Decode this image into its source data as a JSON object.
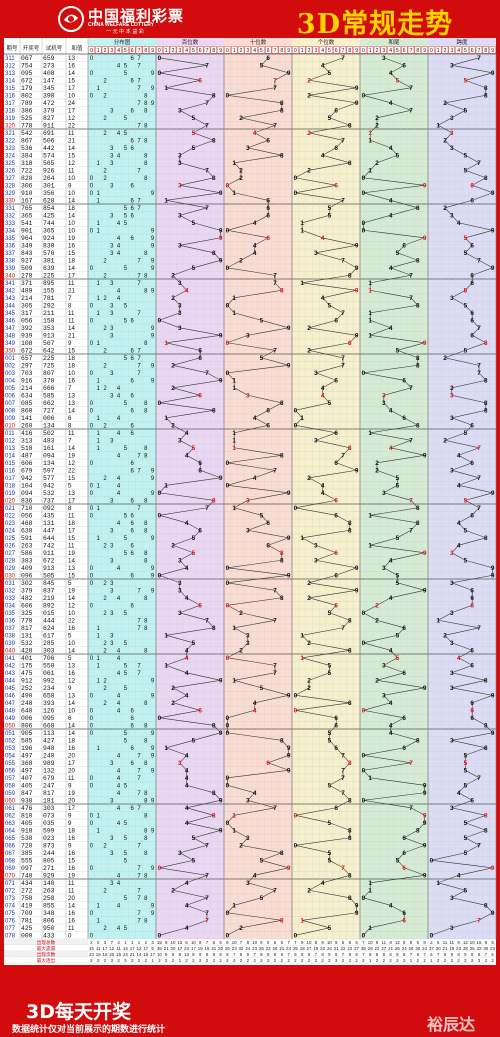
{
  "header": {
    "logo_cn": "中国福利彩票",
    "logo_en": "CHINA WELFARE LOTTERY",
    "logo_slogan": "一 元 中 本 益 彩",
    "title": "3D常规走势"
  },
  "footer": {
    "big": "3D每天开奖",
    "small": "数据统计仅对当前展示的期数进行统计",
    "brand": "裕辰达"
  },
  "colors": {
    "frame": "#d20c0c",
    "title": "#ffd200",
    "lines": "#333333",
    "missing_red": "#e11111",
    "missing_blue": "#2222cc"
  },
  "chart_data": {
    "type": "table",
    "columns": [
      "期号",
      "开奖号",
      "试机号",
      "和值"
    ],
    "sections": [
      "分布图",
      "百位数",
      "十位数",
      "个位数",
      "和尾",
      "跨度"
    ],
    "digits": [
      "0",
      "1",
      "2",
      "3",
      "4",
      "5",
      "6",
      "7",
      "8",
      "9"
    ],
    "stat_labels": [
      "出现总数",
      "最大遗漏",
      "出现次数",
      "最大连出"
    ],
    "rows": [
      [
        "311",
        "067",
        "659",
        "13"
      ],
      [
        "312",
        "754",
        "273",
        "16"
      ],
      [
        "313",
        "095",
        "408",
        "14"
      ],
      [
        "314",
        "672",
        "147",
        "15"
      ],
      [
        "315",
        "179",
        "345",
        "17"
      ],
      [
        "316",
        "802",
        "398",
        "10"
      ],
      [
        "317",
        "789",
        "472",
        "24"
      ],
      [
        "318",
        "386",
        "379",
        "17"
      ],
      [
        "319",
        "525",
        "827",
        "12"
      ],
      [
        "320",
        "778",
        "911",
        "22"
      ],
      [
        "321",
        "542",
        "691",
        "11"
      ],
      [
        "322",
        "867",
        "506",
        "21"
      ],
      [
        "323",
        "536",
        "442",
        "14"
      ],
      [
        "324",
        "384",
        "574",
        "15"
      ],
      [
        "325",
        "318",
        "565",
        "12"
      ],
      [
        "326",
        "722",
        "926",
        "11"
      ],
      [
        "327",
        "820",
        "264",
        "10"
      ],
      [
        "328",
        "306",
        "301",
        "9"
      ],
      [
        "329",
        "910",
        "356",
        "10"
      ],
      [
        "330",
        "167",
        "628",
        "14"
      ],
      [
        "331",
        "765",
        "854",
        "18"
      ],
      [
        "332",
        "365",
        "425",
        "14"
      ],
      [
        "333",
        "541",
        "744",
        "10"
      ],
      [
        "334",
        "901",
        "365",
        "10"
      ],
      [
        "335",
        "964",
        "924",
        "19"
      ],
      [
        "336",
        "349",
        "830",
        "16"
      ],
      [
        "337",
        "843",
        "570",
        "15"
      ],
      [
        "338",
        "927",
        "381",
        "18"
      ],
      [
        "339",
        "509",
        "639",
        "14"
      ],
      [
        "340",
        "278",
        "225",
        "17"
      ],
      [
        "341",
        "371",
        "895",
        "11"
      ],
      [
        "342",
        "489",
        "155",
        "21"
      ],
      [
        "343",
        "214",
        "781",
        "7"
      ],
      [
        "344",
        "305",
        "292",
        "8"
      ],
      [
        "345",
        "317",
        "211",
        "11"
      ],
      [
        "346",
        "056",
        "158",
        "11"
      ],
      [
        "347",
        "392",
        "353",
        "14"
      ],
      [
        "348",
        "939",
        "913",
        "21"
      ],
      [
        "349",
        "108",
        "567",
        "9"
      ],
      [
        "350",
        "672",
        "642",
        "15"
      ],
      [
        "001",
        "657",
        "225",
        "18"
      ],
      [
        "002",
        "297",
        "725",
        "18"
      ],
      [
        "003",
        "703",
        "807",
        "10"
      ],
      [
        "004",
        "916",
        "370",
        "16"
      ],
      [
        "005",
        "214",
        "666",
        "7"
      ],
      [
        "006",
        "634",
        "585",
        "13"
      ],
      [
        "007",
        "085",
        "662",
        "13"
      ],
      [
        "008",
        "860",
        "727",
        "14"
      ],
      [
        "009",
        "141",
        "006",
        "6"
      ],
      [
        "010",
        "260",
        "134",
        "8"
      ],
      [
        "011",
        "416",
        "502",
        "11"
      ],
      [
        "012",
        "313",
        "483",
        "7"
      ],
      [
        "013",
        "518",
        "161",
        "14"
      ],
      [
        "014",
        "487",
        "094",
        "19"
      ],
      [
        "015",
        "606",
        "134",
        "12"
      ],
      [
        "016",
        "679",
        "597",
        "22"
      ],
      [
        "017",
        "942",
        "577",
        "15"
      ],
      [
        "018",
        "104",
        "942",
        "5"
      ],
      [
        "019",
        "094",
        "532",
        "13"
      ],
      [
        "020",
        "836",
        "737",
        "17"
      ],
      [
        "021",
        "710",
        "092",
        "8"
      ],
      [
        "022",
        "056",
        "435",
        "11"
      ],
      [
        "023",
        "468",
        "131",
        "18"
      ],
      [
        "024",
        "638",
        "447",
        "17"
      ],
      [
        "025",
        "591",
        "644",
        "15"
      ],
      [
        "026",
        "263",
        "742",
        "11"
      ],
      [
        "027",
        "586",
        "911",
        "19"
      ],
      [
        "028",
        "383",
        "672",
        "14"
      ],
      [
        "029",
        "409",
        "913",
        "13"
      ],
      [
        "030",
        "096",
        "505",
        "15"
      ],
      [
        "031",
        "302",
        "845",
        "5"
      ],
      [
        "032",
        "379",
        "837",
        "19"
      ],
      [
        "033",
        "482",
        "219",
        "14"
      ],
      [
        "034",
        "606",
        "892",
        "12"
      ],
      [
        "035",
        "325",
        "015",
        "10"
      ],
      [
        "036",
        "778",
        "444",
        "22"
      ],
      [
        "037",
        "817",
        "624",
        "16"
      ],
      [
        "038",
        "131",
        "617",
        "5"
      ],
      [
        "039",
        "532",
        "285",
        "10"
      ],
      [
        "040",
        "428",
        "303",
        "14"
      ],
      [
        "041",
        "401",
        "706",
        "5"
      ],
      [
        "042",
        "175",
        "550",
        "13"
      ],
      [
        "043",
        "475",
        "061",
        "16"
      ],
      [
        "044",
        "912",
        "992",
        "12"
      ],
      [
        "045",
        "252",
        "234",
        "9"
      ],
      [
        "046",
        "490",
        "658",
        "13"
      ],
      [
        "047",
        "248",
        "393",
        "14"
      ],
      [
        "048",
        "640",
        "126",
        "10"
      ],
      [
        "049",
        "006",
        "095",
        "6"
      ],
      [
        "050",
        "806",
        "668",
        "14"
      ],
      [
        "051",
        "905",
        "113",
        "14"
      ],
      [
        "052",
        "585",
        "427",
        "18"
      ],
      [
        "053",
        "196",
        "948",
        "16"
      ],
      [
        "054",
        "497",
        "240",
        "20"
      ],
      [
        "055",
        "368",
        "989",
        "17"
      ],
      [
        "056",
        "497",
        "132",
        "20"
      ],
      [
        "057",
        "407",
        "679",
        "11"
      ],
      [
        "058",
        "405",
        "247",
        "9"
      ],
      [
        "059",
        "847",
        "817",
        "19"
      ],
      [
        "060",
        "938",
        "181",
        "20"
      ],
      [
        "061",
        "476",
        "303",
        "17"
      ],
      [
        "062",
        "810",
        "073",
        "9"
      ],
      [
        "063",
        "405",
        "035",
        "9"
      ],
      [
        "064",
        "918",
        "599",
        "18"
      ],
      [
        "065",
        "538",
        "023",
        "16"
      ],
      [
        "066",
        "720",
        "873",
        "9"
      ],
      [
        "067",
        "385",
        "244",
        "16"
      ],
      [
        "068",
        "555",
        "805",
        "15"
      ],
      [
        "069",
        "097",
        "271",
        "16"
      ],
      [
        "070",
        "748",
        "929",
        "19"
      ],
      [
        "071",
        "434",
        "140",
        "11"
      ],
      [
        "072",
        "272",
        "263",
        "11"
      ],
      [
        "073",
        "758",
        "258",
        "20"
      ],
      [
        "074",
        "419",
        "855",
        "14"
      ],
      [
        "075",
        "709",
        "348",
        "16"
      ],
      [
        "076",
        "781",
        "806",
        "16"
      ],
      [
        "077",
        "425",
        "950",
        "11"
      ],
      [
        "078",
        "000",
        "433",
        "0"
      ]
    ],
    "stats": [
      [
        "2 0 3 7 4 1 1 1 2 3",
        "15 8 10 13 6 10 8 7 6 6",
        "8 10 7 8 10 9 9 6 6 7",
        "7 9 10 8 9 10 9 6 8 6",
        "7 10 9 11 8 12 8 9 5 8",
        "2 5 11 11 9 12 10 15 9 5"
      ],
      [
        "15 11 17 12 11 15 17 12 17 5",
        "35 21 20 17 24 17 19 16 21 20",
        "25 23 32 24 23 25 22 26 21 24",
        "25 18 27 19 22 24 21 22 22 27",
        "35 28 22 27 21 25 24 26 30 24",
        "37 30 21 19 23 28 25 32 30 23"
      ],
      [
        "23 15 18 20 16 24 21 14 16 17",
        "10 9 8 8 10 8 9 9 8 8",
        "8 7 8 9 7 8 9 8 9 7",
        "9 8 8 7 8 9 8 7 8 8",
        "7 8 8 8 6 9 8 7 9 7",
        "6 7 8 9 8 9 8 9 7 6"
      ],
      [
        "2 2 2 3 2 3 2 2 2 1",
        "3 2 2 1 2 2 2 2 2 2",
        "2 2 2 2 3 2 2 2 2 2",
        "2 2 2 2 2 2 3 2 2 2",
        "2 1 2 2 2 2 2 1 2 2",
        "1 2 2 2 2 2 2 3 2 2"
      ]
    ]
  }
}
